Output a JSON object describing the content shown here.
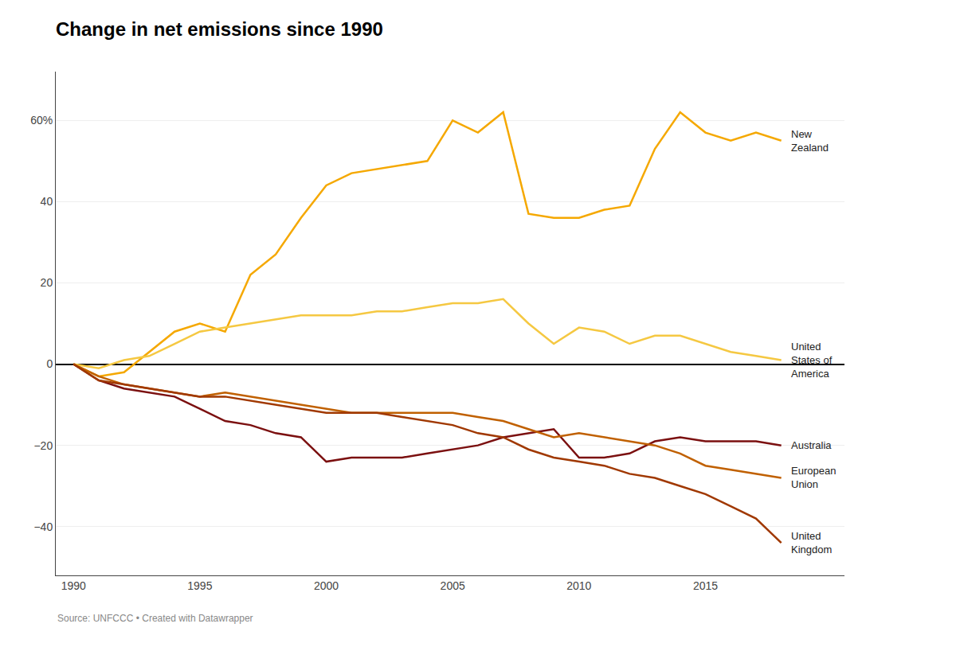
{
  "chart_data": {
    "type": "line",
    "title": "Change in net emissions since 1990",
    "source": "Source: UNFCCC • Created with Datawrapper",
    "x": [
      1990,
      1991,
      1992,
      1993,
      1994,
      1995,
      1996,
      1997,
      1998,
      1999,
      2000,
      2001,
      2002,
      2003,
      2004,
      2005,
      2006,
      2007,
      2008,
      2009,
      2010,
      2011,
      2012,
      2013,
      2014,
      2015,
      2016,
      2017,
      2018
    ],
    "series": [
      {
        "name": "New\nZealand",
        "color": "#F5A800",
        "values": [
          0,
          -3,
          -2,
          3,
          8,
          10,
          8,
          22,
          27,
          36,
          44,
          47,
          48,
          49,
          50,
          60,
          57,
          62,
          37,
          36,
          36,
          38,
          39,
          53,
          62,
          57,
          55,
          57,
          55
        ]
      },
      {
        "name": "United\nStates of\nAmerica",
        "color": "#F5C842",
        "values": [
          0,
          -1,
          1,
          2,
          5,
          8,
          9,
          10,
          11,
          12,
          12,
          12,
          13,
          13,
          14,
          15,
          15,
          16,
          10,
          5,
          9,
          8,
          5,
          7,
          7,
          5,
          3,
          2,
          1
        ]
      },
      {
        "name": "Australia",
        "color": "#7B1010",
        "values": [
          0,
          -4,
          -6,
          -7,
          -8,
          -11,
          -14,
          -15,
          -17,
          -18,
          -24,
          -23,
          -23,
          -23,
          -22,
          -21,
          -20,
          -18,
          -17,
          -16,
          -23,
          -23,
          -22,
          -19,
          -18,
          -19,
          -19,
          -19,
          -20
        ]
      },
      {
        "name": "European\nUnion",
        "color": "#C06000",
        "values": [
          0,
          -3,
          -5,
          -6,
          -7,
          -8,
          -7,
          -8,
          -9,
          -10,
          -11,
          -12,
          -12,
          -12,
          -12,
          -12,
          -13,
          -14,
          -16,
          -18,
          -17,
          -18,
          -19,
          -20,
          -22,
          -25,
          -26,
          -27,
          -28
        ]
      },
      {
        "name": "United\nKingdom",
        "color": "#A03800",
        "values": [
          0,
          -4,
          -5,
          -6,
          -7,
          -8,
          -8,
          -9,
          -10,
          -11,
          -12,
          -12,
          -12,
          -13,
          -14,
          -15,
          -17,
          -18,
          -21,
          -23,
          -24,
          -25,
          -27,
          -28,
          -30,
          -32,
          -35,
          -38,
          -44
        ]
      }
    ],
    "ylim": [
      -52,
      72
    ],
    "yticks": [
      {
        "value": -40,
        "label": "−40"
      },
      {
        "value": -20,
        "label": "−20"
      },
      0,
      20,
      40,
      {
        "value": 60,
        "label": "60%"
      }
    ],
    "xlim": [
      1989.3,
      2020.5
    ],
    "xticks": [
      1990,
      1995,
      2000,
      2005,
      2010,
      2015
    ],
    "grid": "y"
  }
}
